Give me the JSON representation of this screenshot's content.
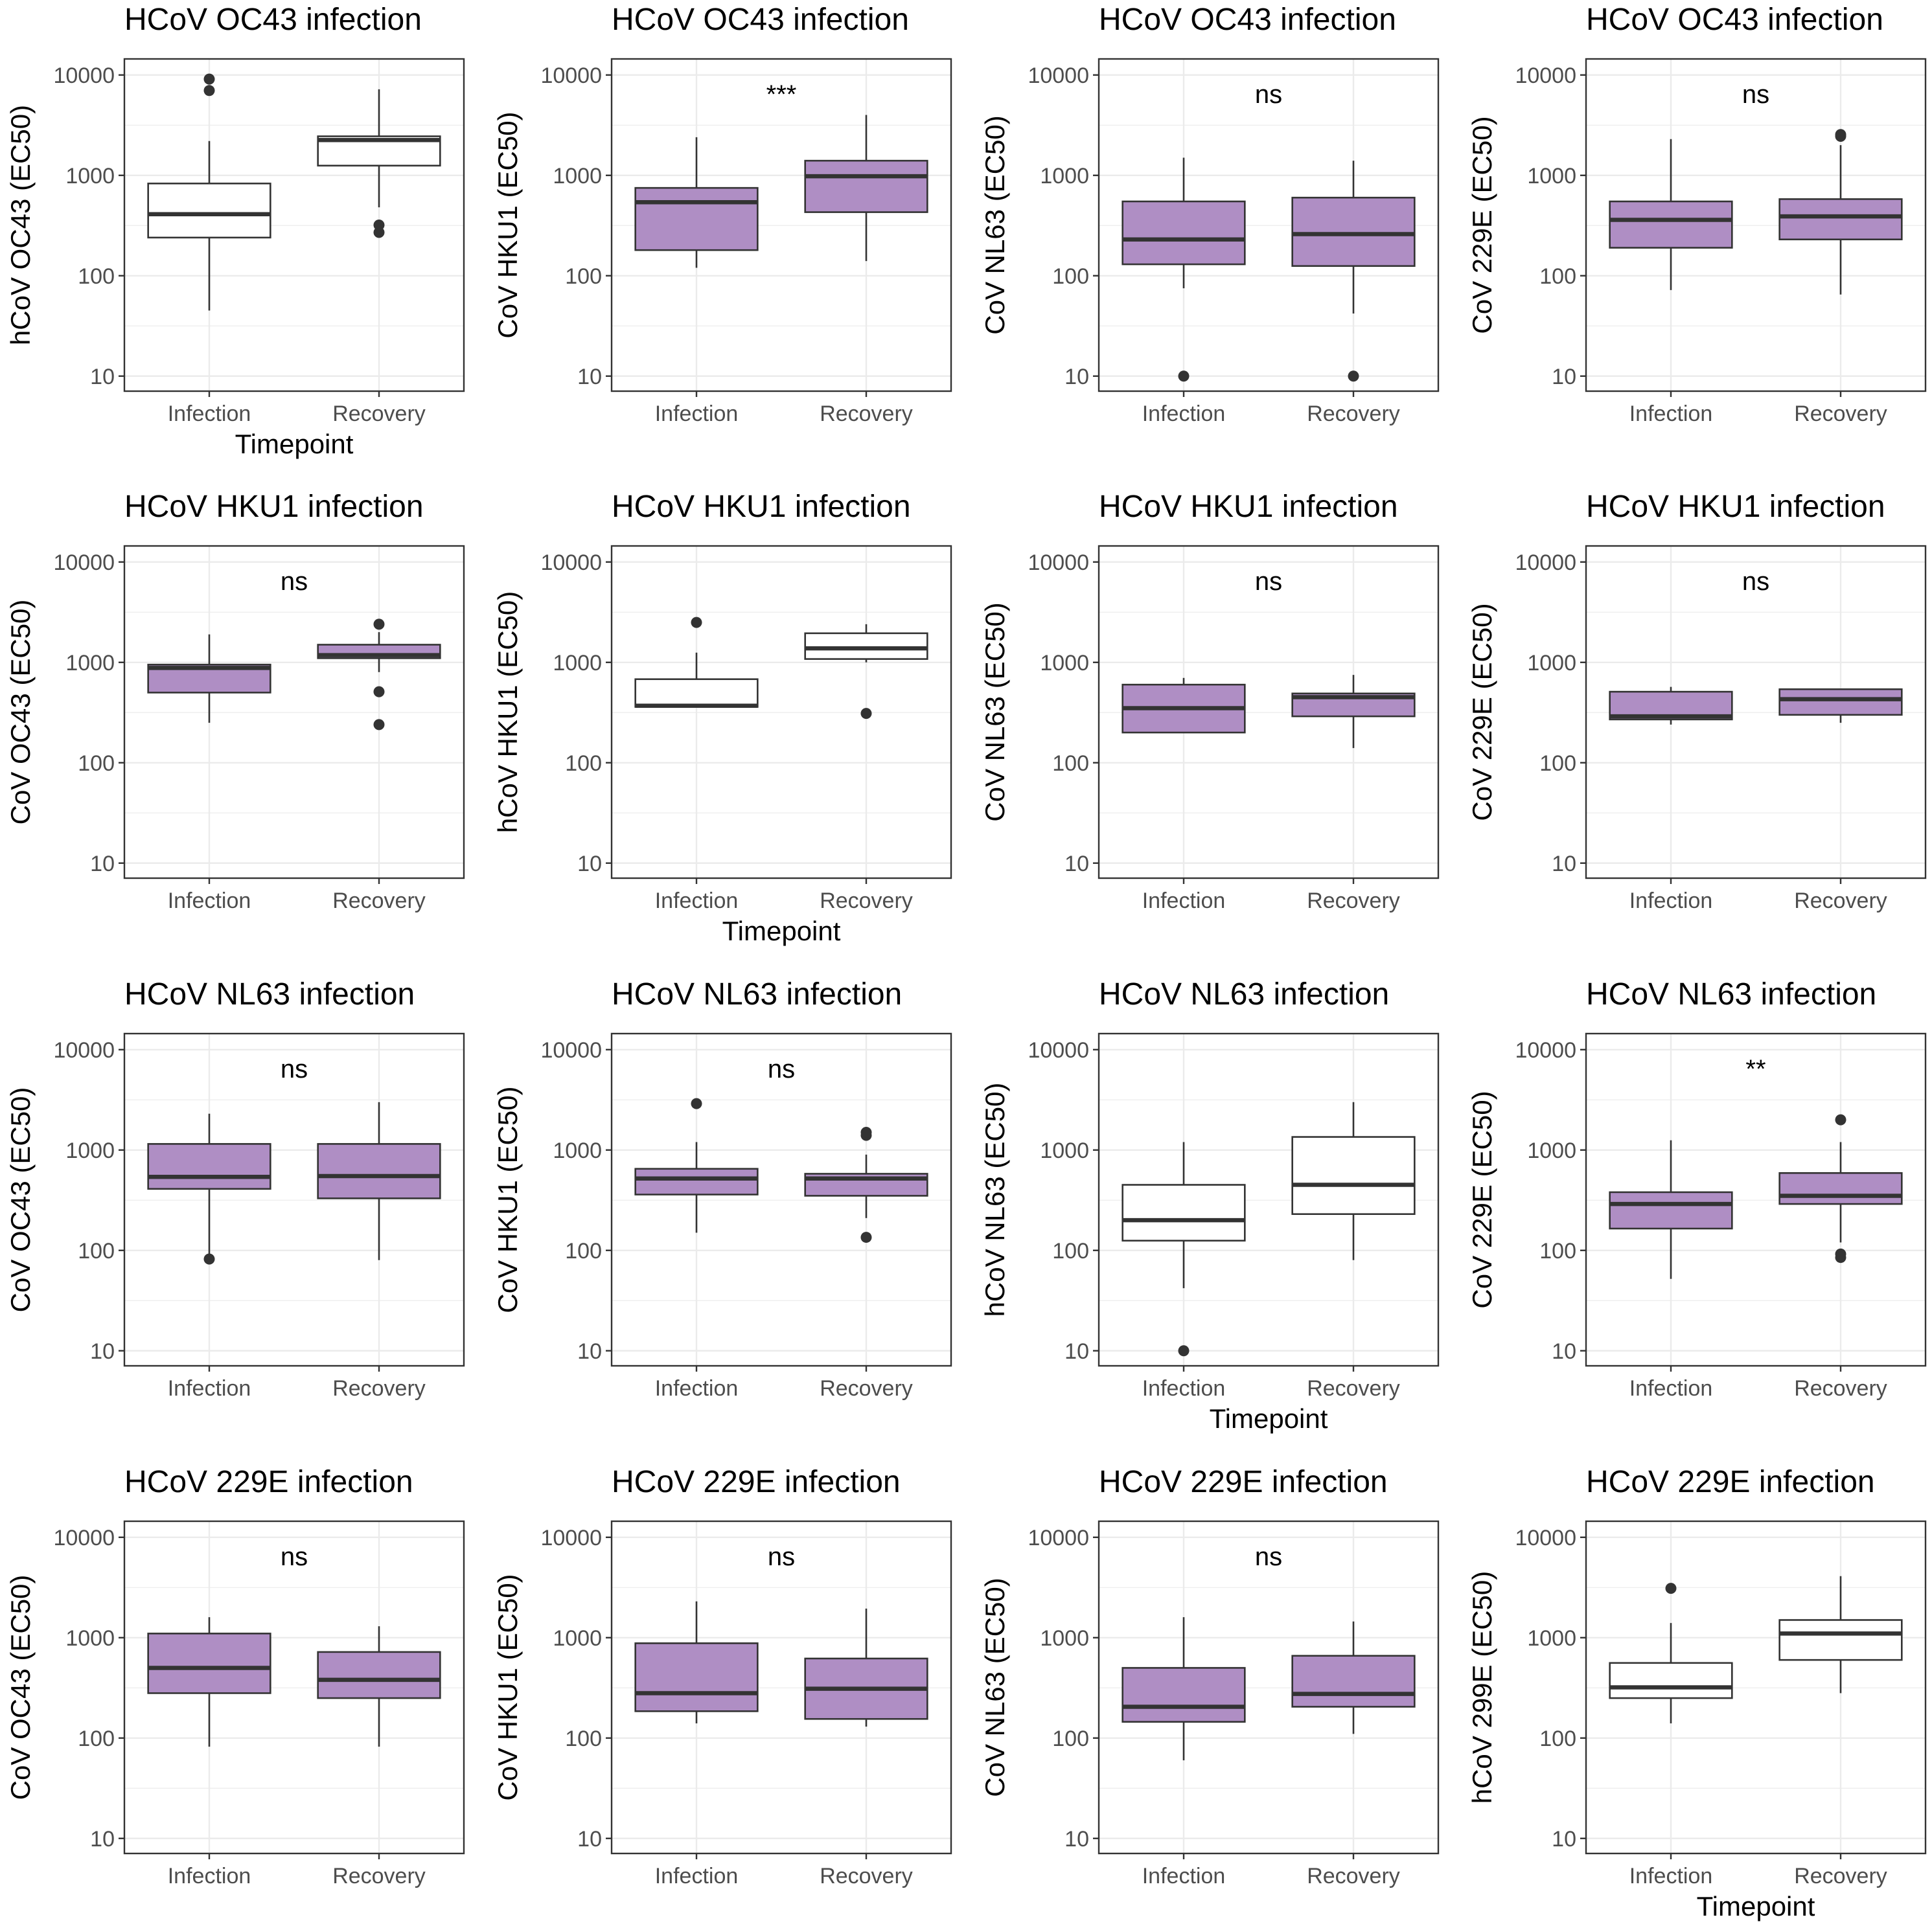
{
  "colors": {
    "purple": "#af8ec4",
    "white": "#ffffff",
    "box_line": "#333333",
    "grid": "#ebebeb",
    "panel_border": "#333333"
  },
  "chart_data": [
    {
      "type": "box",
      "title": "HCoV OC43 infection",
      "ylabel": "hCoV OC43  (EC50)",
      "xlabel": "Timepoint",
      "significance": "",
      "fill": "white",
      "categories": [
        "Infection",
        "Recovery"
      ],
      "yscale": "log10",
      "yticks": [
        10,
        100,
        1000,
        10000
      ],
      "ytick_labels": [
        "10",
        "100",
        "1000",
        "10000"
      ],
      "boxes": [
        {
          "group": "Infection",
          "whisker_low": 45,
          "q1": 240,
          "median": 410,
          "q3": 830,
          "whisker_high": 2200,
          "outliers": [
            9100,
            7000
          ]
        },
        {
          "group": "Recovery",
          "whisker_low": 480,
          "q1": 1250,
          "median": 2250,
          "q3": 2450,
          "whisker_high": 7200,
          "outliers": [
            320,
            270
          ]
        }
      ]
    },
    {
      "type": "box",
      "title": "HCoV OC43 infection",
      "ylabel": "CoV HKU1 (EC50)",
      "xlabel": "",
      "significance": "***",
      "fill": "purple",
      "categories": [
        "Infection",
        "Recovery"
      ],
      "yscale": "log10",
      "yticks": [
        10,
        100,
        1000,
        10000
      ],
      "ytick_labels": [
        "10",
        "100",
        "1000",
        "10000"
      ],
      "boxes": [
        {
          "group": "Infection",
          "whisker_low": 120,
          "q1": 180,
          "median": 540,
          "q3": 750,
          "whisker_high": 2400,
          "outliers": []
        },
        {
          "group": "Recovery",
          "whisker_low": 140,
          "q1": 430,
          "median": 980,
          "q3": 1400,
          "whisker_high": 4000,
          "outliers": []
        }
      ]
    },
    {
      "type": "box",
      "title": "HCoV OC43 infection",
      "ylabel": "CoV NL63 (EC50)",
      "xlabel": "",
      "significance": "ns",
      "fill": "purple",
      "categories": [
        "Infection",
        "Recovery"
      ],
      "yscale": "log10",
      "yticks": [
        10,
        100,
        1000,
        10000
      ],
      "ytick_labels": [
        "10",
        "100",
        "1000",
        "10000"
      ],
      "boxes": [
        {
          "group": "Infection",
          "whisker_low": 75,
          "q1": 130,
          "median": 230,
          "q3": 550,
          "whisker_high": 1500,
          "outliers": [
            10
          ]
        },
        {
          "group": "Recovery",
          "whisker_low": 42,
          "q1": 125,
          "median": 260,
          "q3": 600,
          "whisker_high": 1400,
          "outliers": [
            10
          ]
        }
      ]
    },
    {
      "type": "box",
      "title": "HCoV OC43 infection",
      "ylabel": "CoV 229E (EC50)",
      "xlabel": "",
      "significance": "ns",
      "fill": "purple",
      "categories": [
        "Infection",
        "Recovery"
      ],
      "yscale": "log10",
      "yticks": [
        10,
        100,
        1000,
        10000
      ],
      "ytick_labels": [
        "10",
        "100",
        "1000",
        "10000"
      ],
      "boxes": [
        {
          "group": "Infection",
          "whisker_low": 72,
          "q1": 190,
          "median": 360,
          "q3": 550,
          "whisker_high": 2300,
          "outliers": []
        },
        {
          "group": "Recovery",
          "whisker_low": 65,
          "q1": 230,
          "median": 390,
          "q3": 580,
          "whisker_high": 2000,
          "outliers": [
            2450,
            2550
          ]
        }
      ]
    },
    {
      "type": "box",
      "title": "HCoV HKU1 infection",
      "ylabel": "CoV OC43 (EC50)",
      "xlabel": "",
      "significance": "ns",
      "fill": "purple",
      "categories": [
        "Infection",
        "Recovery"
      ],
      "yscale": "log10",
      "yticks": [
        10,
        100,
        1000,
        10000
      ],
      "ytick_labels": [
        "10",
        "100",
        "1000",
        "10000"
      ],
      "boxes": [
        {
          "group": "Infection",
          "whisker_low": 250,
          "q1": 500,
          "median": 880,
          "q3": 950,
          "whisker_high": 1900,
          "outliers": []
        },
        {
          "group": "Recovery",
          "whisker_low": 800,
          "q1": 1100,
          "median": 1180,
          "q3": 1500,
          "whisker_high": 2000,
          "outliers": [
            2400,
            510,
            240
          ]
        }
      ]
    },
    {
      "type": "box",
      "title": "HCoV HKU1 infection",
      "ylabel": "hCoV HKU1  (EC50)",
      "xlabel": "Timepoint",
      "significance": "",
      "fill": "white",
      "categories": [
        "Infection",
        "Recovery"
      ],
      "yscale": "log10",
      "yticks": [
        10,
        100,
        1000,
        10000
      ],
      "ytick_labels": [
        "10",
        "100",
        "1000",
        "10000"
      ],
      "boxes": [
        {
          "group": "Infection",
          "whisker_low": 360,
          "q1": 360,
          "median": 370,
          "q3": 680,
          "whisker_high": 1250,
          "outliers": [
            2500
          ]
        },
        {
          "group": "Recovery",
          "whisker_low": 1000,
          "q1": 1080,
          "median": 1380,
          "q3": 1950,
          "whisker_high": 2400,
          "outliers": [
            310
          ]
        }
      ]
    },
    {
      "type": "box",
      "title": "HCoV HKU1 infection",
      "ylabel": "CoV NL63 (EC50)",
      "xlabel": "",
      "significance": "ns",
      "fill": "purple",
      "categories": [
        "Infection",
        "Recovery"
      ],
      "yscale": "log10",
      "yticks": [
        10,
        100,
        1000,
        10000
      ],
      "ytick_labels": [
        "10",
        "100",
        "1000",
        "10000"
      ],
      "boxes": [
        {
          "group": "Infection",
          "whisker_low": 200,
          "q1": 200,
          "median": 350,
          "q3": 600,
          "whisker_high": 700,
          "outliers": []
        },
        {
          "group": "Recovery",
          "whisker_low": 140,
          "q1": 290,
          "median": 450,
          "q3": 490,
          "whisker_high": 750,
          "outliers": []
        }
      ]
    },
    {
      "type": "box",
      "title": "HCoV HKU1 infection",
      "ylabel": "CoV 229E (EC50)",
      "xlabel": "",
      "significance": "ns",
      "fill": "purple",
      "categories": [
        "Infection",
        "Recovery"
      ],
      "yscale": "log10",
      "yticks": [
        10,
        100,
        1000,
        10000
      ],
      "ytick_labels": [
        "10",
        "100",
        "1000",
        "10000"
      ],
      "boxes": [
        {
          "group": "Infection",
          "whisker_low": 240,
          "q1": 270,
          "median": 290,
          "q3": 510,
          "whisker_high": 570,
          "outliers": []
        },
        {
          "group": "Recovery",
          "whisker_low": 250,
          "q1": 300,
          "median": 430,
          "q3": 540,
          "whisker_high": 540,
          "outliers": []
        }
      ]
    },
    {
      "type": "box",
      "title": "HCoV NL63 infection",
      "ylabel": "CoV OC43 (EC50)",
      "xlabel": "",
      "significance": "ns",
      "fill": "purple",
      "categories": [
        "Infection",
        "Recovery"
      ],
      "yscale": "log10",
      "yticks": [
        10,
        100,
        1000,
        10000
      ],
      "ytick_labels": [
        "10",
        "100",
        "1000",
        "10000"
      ],
      "boxes": [
        {
          "group": "Infection",
          "whisker_low": 90,
          "q1": 410,
          "median": 540,
          "q3": 1150,
          "whisker_high": 2300,
          "outliers": [
            82
          ]
        },
        {
          "group": "Recovery",
          "whisker_low": 80,
          "q1": 330,
          "median": 550,
          "q3": 1150,
          "whisker_high": 3000,
          "outliers": []
        }
      ]
    },
    {
      "type": "box",
      "title": "HCoV NL63 infection",
      "ylabel": "CoV HKU1 (EC50)",
      "xlabel": "",
      "significance": "ns",
      "fill": "purple",
      "categories": [
        "Infection",
        "Recovery"
      ],
      "yscale": "log10",
      "yticks": [
        10,
        100,
        1000,
        10000
      ],
      "ytick_labels": [
        "10",
        "100",
        "1000",
        "10000"
      ],
      "boxes": [
        {
          "group": "Infection",
          "whisker_low": 150,
          "q1": 360,
          "median": 520,
          "q3": 650,
          "whisker_high": 1200,
          "outliers": [
            2900
          ]
        },
        {
          "group": "Recovery",
          "whisker_low": 210,
          "q1": 350,
          "median": 520,
          "q3": 580,
          "whisker_high": 900,
          "outliers": [
            1400,
            1500,
            135
          ]
        }
      ]
    },
    {
      "type": "box",
      "title": "HCoV NL63 infection",
      "ylabel": "hCoV NL63 (EC50)",
      "xlabel": "Timepoint",
      "significance": "",
      "fill": "white",
      "categories": [
        "Infection",
        "Recovery"
      ],
      "yscale": "log10",
      "yticks": [
        10,
        100,
        1000,
        10000
      ],
      "ytick_labels": [
        "10",
        "100",
        "1000",
        "10000"
      ],
      "boxes": [
        {
          "group": "Infection",
          "whisker_low": 42,
          "q1": 125,
          "median": 200,
          "q3": 450,
          "whisker_high": 1200,
          "outliers": [
            10
          ]
        },
        {
          "group": "Recovery",
          "whisker_low": 80,
          "q1": 230,
          "median": 450,
          "q3": 1350,
          "whisker_high": 3000,
          "outliers": []
        }
      ]
    },
    {
      "type": "box",
      "title": "HCoV NL63 infection",
      "ylabel": "CoV 229E (EC50)",
      "xlabel": "",
      "significance": "**",
      "fill": "purple",
      "categories": [
        "Infection",
        "Recovery"
      ],
      "yscale": "log10",
      "yticks": [
        10,
        100,
        1000,
        10000
      ],
      "ytick_labels": [
        "10",
        "100",
        "1000",
        "10000"
      ],
      "boxes": [
        {
          "group": "Infection",
          "whisker_low": 52,
          "q1": 165,
          "median": 290,
          "q3": 380,
          "whisker_high": 1250,
          "outliers": []
        },
        {
          "group": "Recovery",
          "whisker_low": 120,
          "q1": 290,
          "median": 350,
          "q3": 590,
          "whisker_high": 1200,
          "outliers": [
            2000,
            92,
            85
          ]
        }
      ]
    },
    {
      "type": "box",
      "title": "HCoV 229E infection",
      "ylabel": "CoV OC43 (EC50)",
      "xlabel": "",
      "significance": "ns",
      "fill": "purple",
      "categories": [
        "Infection",
        "Recovery"
      ],
      "yscale": "log10",
      "yticks": [
        10,
        100,
        1000,
        10000
      ],
      "ytick_labels": [
        "10",
        "100",
        "1000",
        "10000"
      ],
      "boxes": [
        {
          "group": "Infection",
          "whisker_low": 82,
          "q1": 280,
          "median": 500,
          "q3": 1100,
          "whisker_high": 1600,
          "outliers": []
        },
        {
          "group": "Recovery",
          "whisker_low": 82,
          "q1": 250,
          "median": 380,
          "q3": 720,
          "whisker_high": 1300,
          "outliers": []
        }
      ]
    },
    {
      "type": "box",
      "title": "HCoV 229E infection",
      "ylabel": "CoV HKU1 (EC50)",
      "xlabel": "",
      "significance": "ns",
      "fill": "purple",
      "categories": [
        "Infection",
        "Recovery"
      ],
      "yscale": "log10",
      "yticks": [
        10,
        100,
        1000,
        10000
      ],
      "ytick_labels": [
        "10",
        "100",
        "1000",
        "10000"
      ],
      "boxes": [
        {
          "group": "Infection",
          "whisker_low": 140,
          "q1": 185,
          "median": 280,
          "q3": 880,
          "whisker_high": 2300,
          "outliers": []
        },
        {
          "group": "Recovery",
          "whisker_low": 130,
          "q1": 155,
          "median": 310,
          "q3": 620,
          "whisker_high": 1950,
          "outliers": []
        }
      ]
    },
    {
      "type": "box",
      "title": "HCoV 229E infection",
      "ylabel": "CoV NL63 (EC50)",
      "xlabel": "",
      "significance": "ns",
      "fill": "purple",
      "categories": [
        "Infection",
        "Recovery"
      ],
      "yscale": "log10",
      "yticks": [
        10,
        100,
        1000,
        10000
      ],
      "ytick_labels": [
        "10",
        "100",
        "1000",
        "10000"
      ],
      "boxes": [
        {
          "group": "Infection",
          "whisker_low": 60,
          "q1": 145,
          "median": 205,
          "q3": 500,
          "whisker_high": 1600,
          "outliers": []
        },
        {
          "group": "Recovery",
          "whisker_low": 110,
          "q1": 205,
          "median": 275,
          "q3": 660,
          "whisker_high": 1450,
          "outliers": []
        }
      ]
    },
    {
      "type": "box",
      "title": "HCoV 229E infection",
      "ylabel": "hCoV 299E (EC50)",
      "xlabel": "Timepoint",
      "significance": "",
      "fill": "white",
      "categories": [
        "Infection",
        "Recovery"
      ],
      "yscale": "log10",
      "yticks": [
        10,
        100,
        1000,
        10000
      ],
      "ytick_labels": [
        "10",
        "100",
        "1000",
        "10000"
      ],
      "boxes": [
        {
          "group": "Infection",
          "whisker_low": 140,
          "q1": 250,
          "median": 320,
          "q3": 560,
          "whisker_high": 1400,
          "outliers": [
            3100
          ]
        },
        {
          "group": "Recovery",
          "whisker_low": 280,
          "q1": 600,
          "median": 1100,
          "q3": 1500,
          "whisker_high": 4100,
          "outliers": []
        }
      ]
    }
  ]
}
